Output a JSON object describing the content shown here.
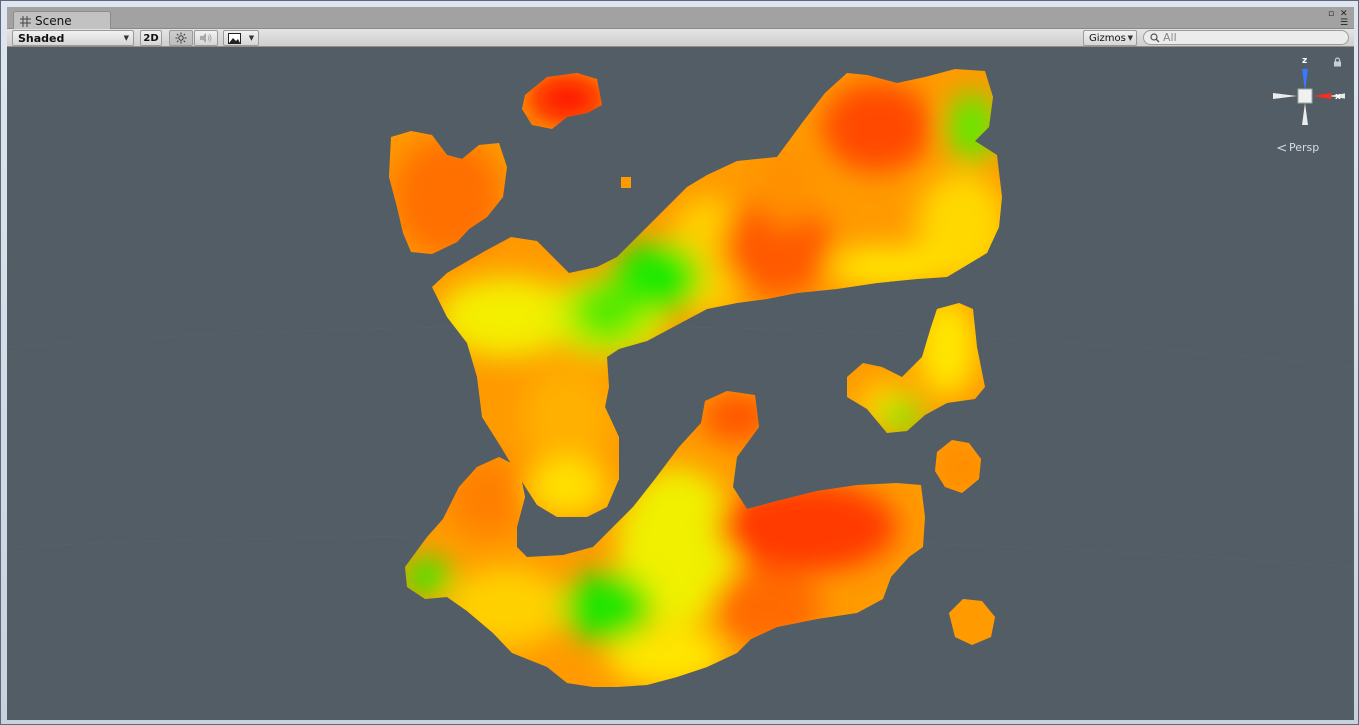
{
  "window": {
    "tab_label": "Scene",
    "tab_icon": "grid-icon"
  },
  "toolbar": {
    "draw_mode": "Shaded",
    "mode_2d": "2D",
    "lighting_icon": "sun-icon",
    "audio_icon": "speaker-icon",
    "effects_icon": "image-icon",
    "gizmos_label": "Gizmos",
    "search_placeholder": "All"
  },
  "scene": {
    "background_color": "#535d66",
    "projection_label": "Persp",
    "axis_labels": {
      "y": "z",
      "x": "x"
    },
    "colors": {
      "red": "#ff2a00",
      "orange": "#ff8c00",
      "yellow": "#ffe600",
      "green": "#22e600"
    }
  }
}
